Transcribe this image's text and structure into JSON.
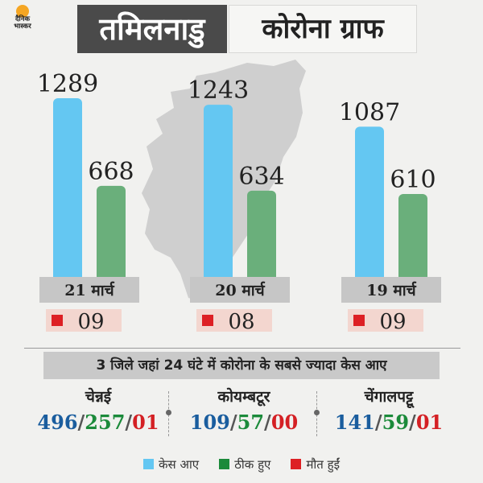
{
  "header": {
    "logo_text_line1": "दैनिक",
    "logo_text_line2": "भास्कर",
    "title_state": "तमिलनाडु",
    "title_graph": "कोरोना ग्राफ"
  },
  "colors": {
    "cases": "#64c7f2",
    "recovered": "#6aaf7b",
    "deaths": "#dd2024",
    "background": "#f1f1ef"
  },
  "chart_data": {
    "type": "bar",
    "categories": [
      "21 मार्च",
      "20 मार्च",
      "19 मार्च"
    ],
    "series": [
      {
        "name": "केस आए",
        "values": [
          1289,
          1243,
          1087
        ]
      },
      {
        "name": "ठीक हुए",
        "values": [
          668,
          634,
          610
        ]
      }
    ],
    "deaths": [
      "09",
      "08",
      "09"
    ],
    "ylim": [
      0,
      1289
    ]
  },
  "districts": {
    "heading": "3 जिले जहां 24 घंटे में कोरोना के सबसे ज्यादा केस आए",
    "items": [
      {
        "name": "चेन्नई",
        "cases": "496",
        "recovered": "257",
        "deaths": "01"
      },
      {
        "name": "कोयम्बटूर",
        "cases": "109",
        "recovered": "57",
        "deaths": "00"
      },
      {
        "name": "चेंगालपट्टू",
        "cases": "141",
        "recovered": "59",
        "deaths": "01"
      }
    ]
  },
  "legend": {
    "cases": "केस आए",
    "recovered": "ठीक हुए",
    "deaths": "मौत हुईं"
  }
}
